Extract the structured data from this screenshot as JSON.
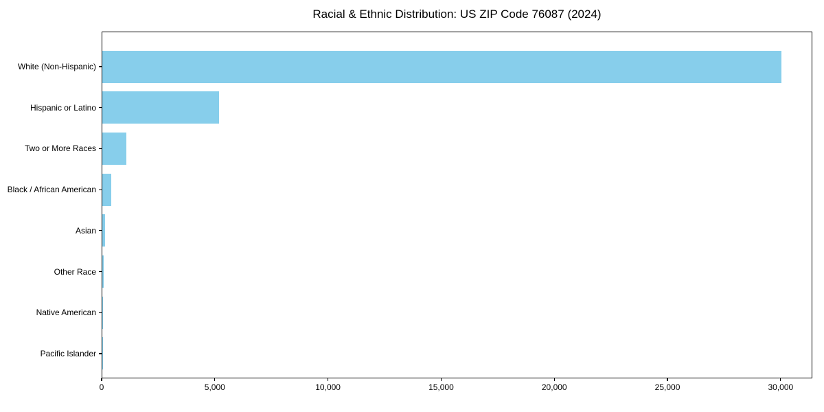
{
  "chart_data": {
    "type": "bar",
    "orientation": "horizontal",
    "title": "Racial & Ethnic Distribution: US ZIP Code 76087 (2024)",
    "categories": [
      "White (Non-Hispanic)",
      "Hispanic or Latino",
      "Two or More Races",
      "Black / African American",
      "Asian",
      "Other Race",
      "Native American",
      "Pacific Islander"
    ],
    "values": [
      30000,
      5150,
      1060,
      390,
      110,
      75,
      15,
      5
    ],
    "xlabel": "",
    "ylabel": "",
    "xlim": [
      0,
      31400
    ],
    "xticks": [
      0,
      5000,
      10000,
      15000,
      20000,
      25000,
      30000
    ],
    "xtick_labels": [
      "0",
      "5,000",
      "10,000",
      "15,000",
      "20,000",
      "25,000",
      "30,000"
    ],
    "bar_color": "#87CEEB",
    "axis_color": "#000000",
    "text_color": "#000000",
    "background_color": "#ffffff",
    "grid": false,
    "legend": null
  }
}
